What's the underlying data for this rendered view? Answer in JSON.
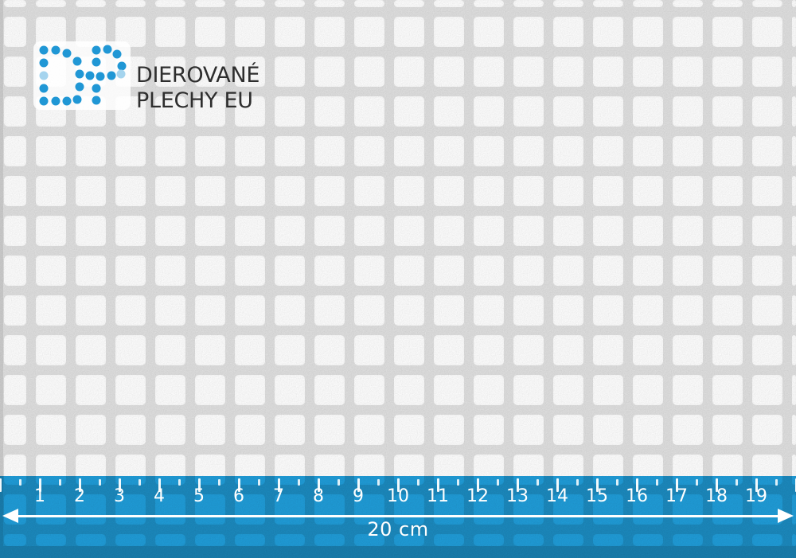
{
  "logo": {
    "monogram": "DP",
    "line1": "DIEROVANÉ",
    "line2": "PLECHY EU"
  },
  "ruler": {
    "unit_labels": [
      "1",
      "2",
      "3",
      "4",
      "5",
      "6",
      "7",
      "8",
      "9",
      "10",
      "11",
      "12",
      "13",
      "14",
      "15",
      "16",
      "17",
      "18",
      "19"
    ],
    "total_label": "20 cm",
    "left_icon": "arrow-left-icon",
    "right_icon": "arrow-right-icon"
  },
  "colors": {
    "brand_blue": "#2097D5",
    "brand_blue_light": "#A5D4EE",
    "logo_text": "#2E2E2E",
    "ruler_blue": "#1F9CD8",
    "ruler_marks": "#FFFFFF",
    "sheet_bar": "#DCDCDC",
    "sheet_hole": "#FAFAFA",
    "sheet_edge": "#C9C9C9"
  }
}
